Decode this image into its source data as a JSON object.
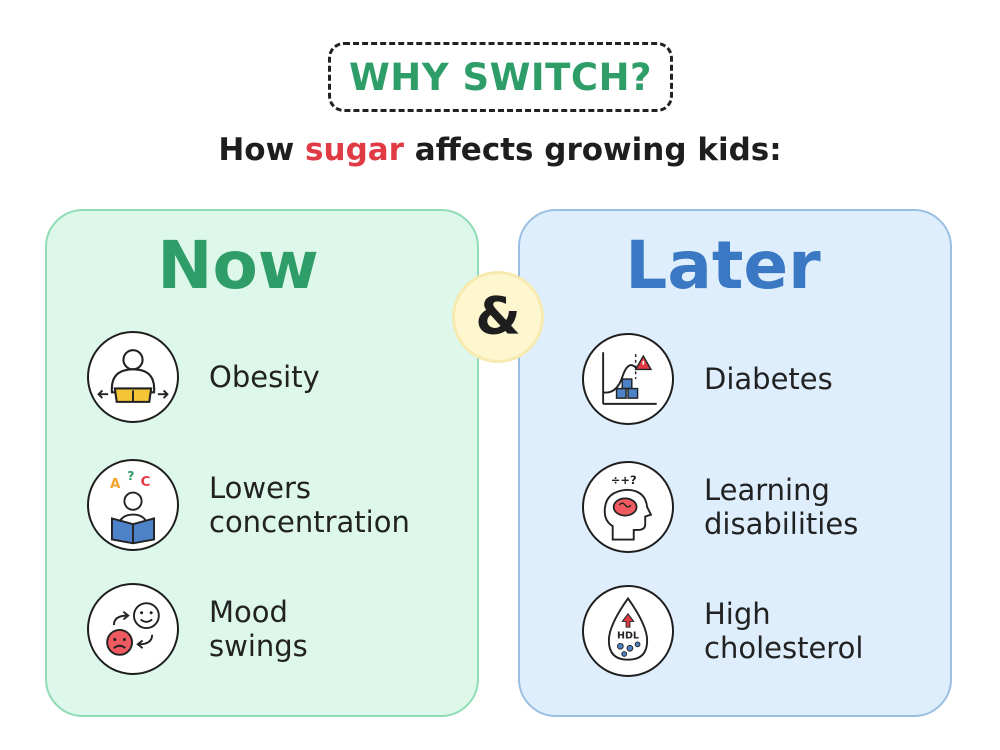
{
  "badge": {
    "title": "WHY SWITCH?"
  },
  "subtitle": {
    "before": "How ",
    "highlight": "sugar",
    "after": " affects growing kids:"
  },
  "connector": {
    "symbol": "&"
  },
  "now": {
    "title": "Now",
    "items": [
      {
        "label": "Obesity",
        "icon": "obesity-icon"
      },
      {
        "label": "Lowers\nconcentration",
        "icon": "reading-child-icon"
      },
      {
        "label": "Mood\nswings",
        "icon": "mood-swings-icon"
      }
    ]
  },
  "later": {
    "title": "Later",
    "items": [
      {
        "label": "Diabetes",
        "icon": "diabetes-chart-icon"
      },
      {
        "label": "Learning\ndisabilities",
        "icon": "brain-head-icon"
      },
      {
        "label": "High\ncholesterol",
        "icon": "cholesterol-drop-icon"
      }
    ]
  },
  "colors": {
    "green": "#2e9d67",
    "blue": "#3a78c3",
    "red": "#e03b45",
    "now_bg": "#ddf8ea",
    "later_bg": "#deeefd",
    "amp_bg": "#fdf6cf"
  }
}
